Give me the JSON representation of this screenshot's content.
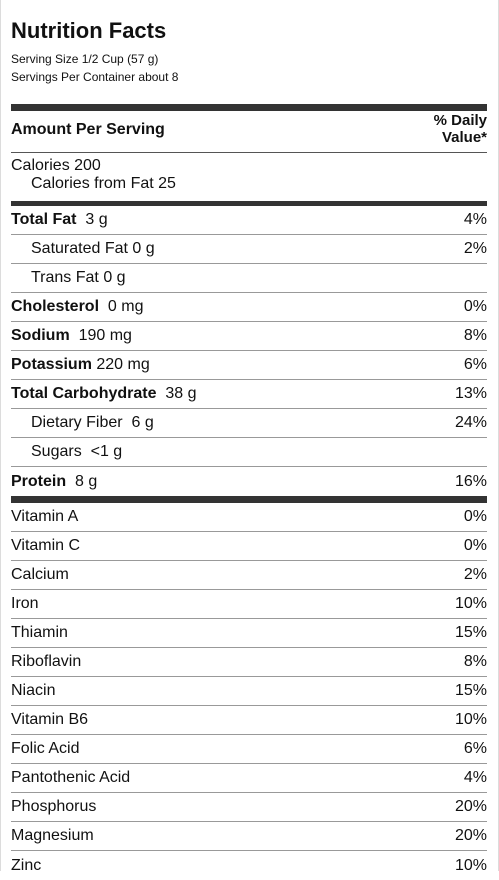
{
  "label": {
    "title": "Nutrition Facts",
    "serving_size": "Serving Size 1/2 Cup (57 g)",
    "servings_per_container": "Servings Per Container about 8",
    "amount_per_serving": "Amount Per Serving",
    "daily_value_line1": "% Daily",
    "daily_value_line2": "Value*",
    "calories": "Calories 200",
    "calories_from_fat": "Calories from Fat 25"
  },
  "nutrients": [
    {
      "name": "Total Fat",
      "amount": "3 g",
      "dv": "4%"
    },
    {
      "name": "Saturated Fat 0 g",
      "amount": "",
      "dv": "2%"
    },
    {
      "name": "Trans Fat 0 g",
      "amount": "",
      "dv": ""
    },
    {
      "name": "Cholesterol",
      "amount": "0 mg",
      "dv": "0%"
    },
    {
      "name": "Sodium",
      "amount": "190 mg",
      "dv": "8%"
    },
    {
      "name": "Potassium",
      "amount": "220 mg",
      "dv": "6%"
    },
    {
      "name": "Total Carbohydrate",
      "amount": "38 g",
      "dv": "13%"
    },
    {
      "name": "Dietary Fiber",
      "amount": "6 g",
      "dv": "24%"
    },
    {
      "name": "Sugars",
      "amount": "<1 g",
      "dv": ""
    },
    {
      "name": "Protein",
      "amount": "8 g",
      "dv": "16%"
    }
  ],
  "vitamins": [
    {
      "name": "Vitamin A",
      "dv": "0%"
    },
    {
      "name": "Vitamin C",
      "dv": "0%"
    },
    {
      "name": "Calcium",
      "dv": "2%"
    },
    {
      "name": "Iron",
      "dv": "10%"
    },
    {
      "name": "Thiamin",
      "dv": "15%"
    },
    {
      "name": "Riboflavin",
      "dv": "8%"
    },
    {
      "name": "Niacin",
      "dv": "15%"
    },
    {
      "name": "Vitamin B6",
      "dv": "10%"
    },
    {
      "name": "Folic Acid",
      "dv": "6%"
    },
    {
      "name": "Pantothenic Acid",
      "dv": "4%"
    },
    {
      "name": "Phosphorus",
      "dv": "20%"
    },
    {
      "name": "Magnesium",
      "dv": "20%"
    },
    {
      "name": "Zinc",
      "dv": "10%"
    }
  ]
}
